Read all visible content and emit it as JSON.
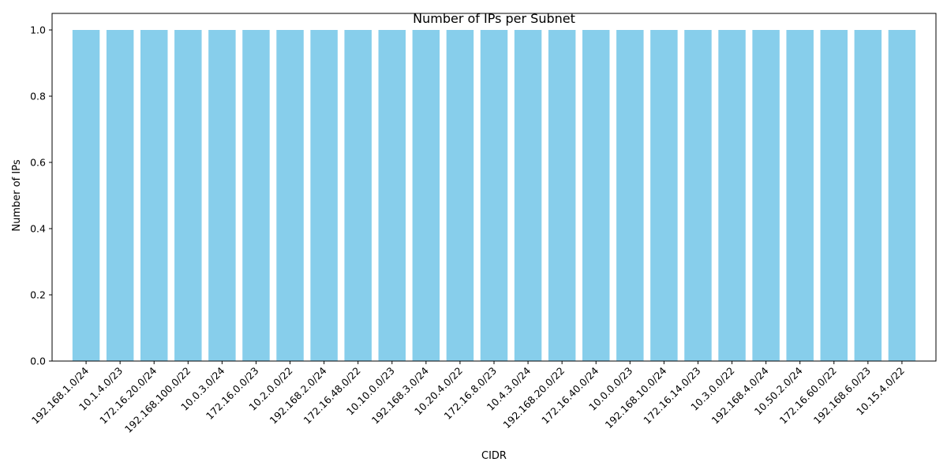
{
  "chart_data": {
    "type": "bar",
    "title": "Number of IPs per Subnet",
    "xlabel": "CIDR",
    "ylabel": "Number of IPs",
    "categories": [
      "192.168.1.0/24",
      "10.1.4.0/23",
      "172.16.20.0/24",
      "192.168.100.0/22",
      "10.0.3.0/24",
      "172.16.0.0/23",
      "10.2.0.0/22",
      "192.168.2.0/24",
      "172.16.48.0/22",
      "10.10.0.0/23",
      "192.168.3.0/24",
      "10.20.4.0/22",
      "172.16.8.0/23",
      "10.4.3.0/24",
      "192.168.20.0/22",
      "172.16.40.0/24",
      "10.0.0.0/23",
      "192.168.10.0/24",
      "172.16.14.0/23",
      "10.3.0.0/22",
      "192.168.4.0/24",
      "10.50.2.0/24",
      "172.16.60.0/22",
      "192.168.6.0/23",
      "10.15.4.0/22"
    ],
    "values": [
      1,
      1,
      1,
      1,
      1,
      1,
      1,
      1,
      1,
      1,
      1,
      1,
      1,
      1,
      1,
      1,
      1,
      1,
      1,
      1,
      1,
      1,
      1,
      1,
      1
    ],
    "ylim": [
      0,
      1.05
    ],
    "yticks": [
      "0.0",
      "0.2",
      "0.4",
      "0.6",
      "0.8",
      "1.0"
    ],
    "bar_color": "#87ceeb",
    "grid": false,
    "legend": "none"
  }
}
